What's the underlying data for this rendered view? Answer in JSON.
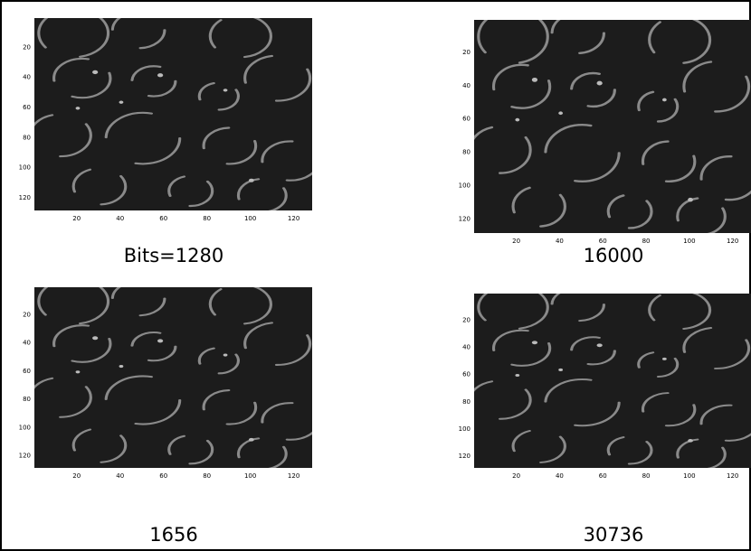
{
  "panels": [
    {
      "caption": "Bits=1280",
      "xticks": [
        20,
        40,
        60,
        80,
        100,
        120
      ],
      "yticks": [
        20,
        40,
        60,
        80,
        100,
        120
      ]
    },
    {
      "caption": "16000",
      "xticks": [
        20,
        40,
        60,
        80,
        100,
        120
      ],
      "yticks": [
        20,
        40,
        60,
        80,
        100,
        120
      ]
    },
    {
      "caption": "1656",
      "xticks": [
        20,
        40,
        60,
        80,
        100,
        120
      ],
      "yticks": [
        20,
        40,
        60,
        80,
        100,
        120
      ]
    },
    {
      "caption": "30736",
      "xticks": [
        20,
        40,
        60,
        80,
        100,
        120
      ],
      "yticks": [
        20,
        40,
        60,
        80,
        100,
        120
      ]
    }
  ]
}
